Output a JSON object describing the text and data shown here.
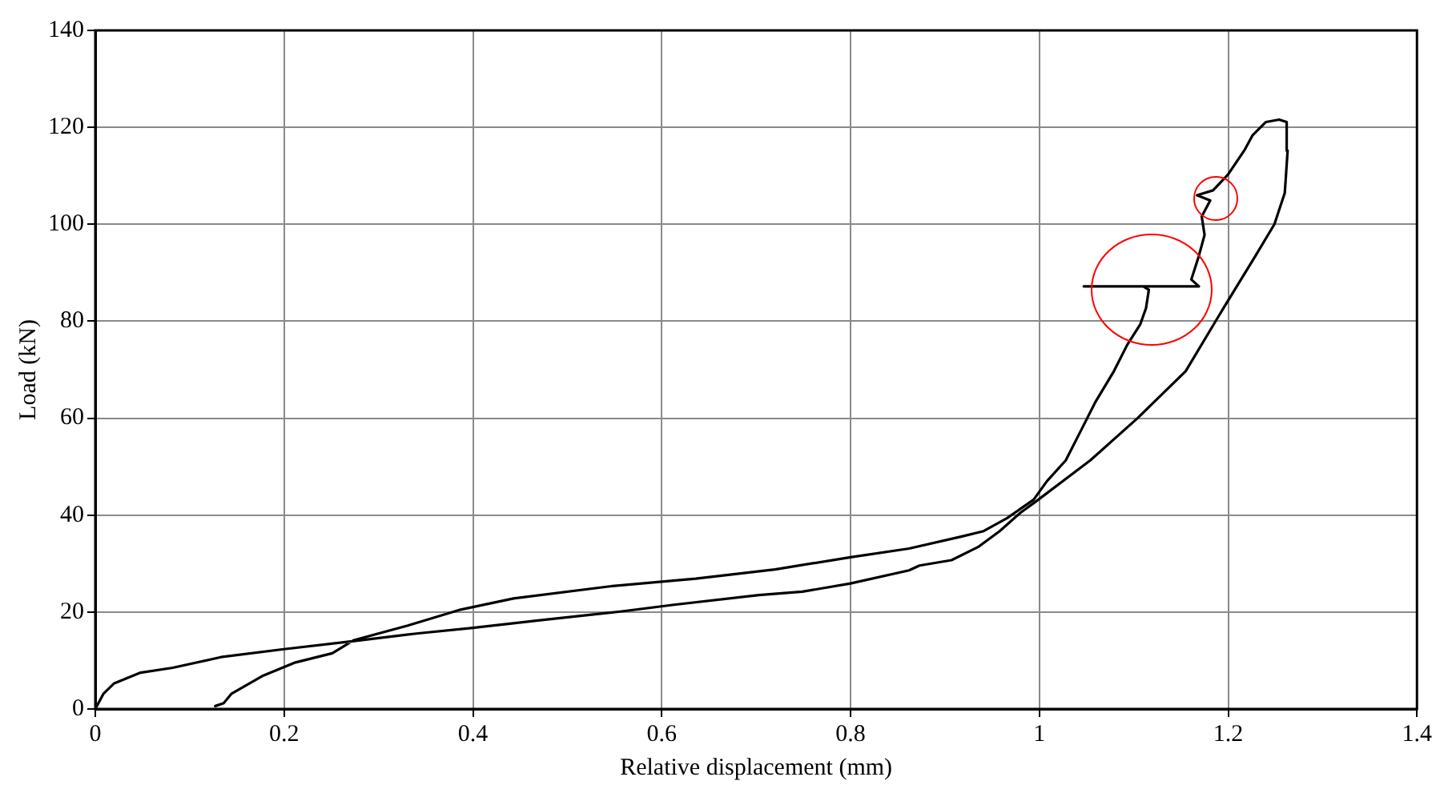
{
  "chart_data": {
    "type": "line",
    "xlabel": "Relative displacement (mm)",
    "ylabel": "Load (kN)",
    "series": [
      {
        "color": "#000000",
        "x": [
          0,
          0.0085,
          0.02,
          0.048,
          0.082,
          0.133,
          0.198,
          0.274,
          0.342,
          0.398,
          0.471,
          0.556,
          0.613,
          0.703,
          0.749,
          0.8,
          0.862,
          0.873,
          0.907,
          0.935,
          0.958,
          0.98,
          0.997,
          1.054,
          1.104,
          1.155,
          1.195,
          1.229,
          1.249,
          1.26,
          1.263,
          1.262,
          1.254,
          1.24,
          1.226,
          1.217,
          1.2,
          1.184,
          1.167,
          1.181,
          1.172,
          1.175,
          1.169,
          1.161,
          1.169,
          1.047,
          1.11,
          1.116,
          1.113,
          1.107,
          1.093,
          1.079,
          1.059,
          1.045,
          1.028,
          1.008,
          0.994,
          0.966,
          0.941,
          0.918,
          0.862,
          0.8,
          0.72,
          0.636,
          0.545,
          0.443,
          0.387,
          0.331,
          0.274,
          0.251,
          0.212,
          0.178,
          0.144,
          0.136,
          0.127
        ],
        "values": [
          0,
          3.1,
          5.3,
          7.5,
          8.5,
          10.7,
          12.3,
          14,
          15.6,
          16.7,
          18.3,
          20.1,
          21.5,
          23.5,
          24.2,
          25.9,
          28.6,
          29.6,
          30.7,
          33.4,
          36.7,
          40.5,
          42.9,
          51.3,
          60,
          69.7,
          82.7,
          93.5,
          100,
          106.5,
          115.2,
          121.1,
          121.6,
          121.1,
          118.4,
          115.2,
          110.3,
          107,
          106,
          104.9,
          101.6,
          97.8,
          93.5,
          88.6,
          87.2,
          87.2,
          87.2,
          86.5,
          82.7,
          79.4,
          75.1,
          69.7,
          63.2,
          57.8,
          51.3,
          47,
          43.2,
          39.4,
          36.7,
          35.6,
          33.1,
          31.3,
          28.8,
          26.9,
          25.3,
          22.8,
          20.5,
          17.2,
          14.2,
          11.5,
          9.6,
          6.9,
          3.1,
          1.2,
          0.6
        ]
      }
    ],
    "xlim": [
      0,
      1.4
    ],
    "xticks": [
      0,
      0.2,
      0.4,
      0.6,
      0.8,
      1,
      1.2,
      1.4
    ],
    "ylim": [
      0,
      140
    ],
    "yticks": [
      0,
      20,
      40,
      60,
      80,
      100,
      120,
      140
    ],
    "grid": true,
    "marker": "none",
    "line_style": "solid"
  }
}
